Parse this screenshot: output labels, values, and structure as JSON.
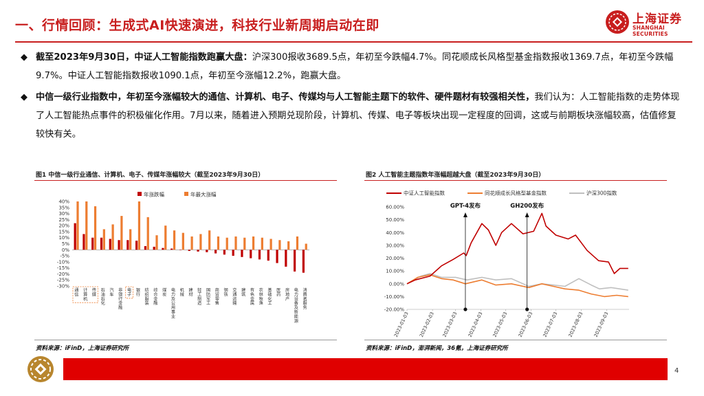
{
  "header": {
    "title": "一、行情回顾：生成式AI快速演进，科技行业新周期启动在即",
    "logo_cn": "上海证券",
    "logo_en": "SHANGHAI SECURITIES"
  },
  "bullets": [
    {
      "lead": "截至2023年9月30日，中证人工智能指数跑赢大盘：",
      "text": "沪深300报收3689.5点，年初至今跌幅4.7%。同花顺成长风格型基金指数报收1369.7点，年初至今跌幅9.7%。中证人工智能指数报收1090.1点，年初至今涨幅12.2%，跑赢大盘。"
    },
    {
      "lead": "中信一级行业指数中，年初至今涨幅较大的通信、计算机、电子、传媒均与人工智能主题下的软件、硬件题材有较强相关性，",
      "text": "我们认为：人工智能指数的走势体现了人工智能热点事件的积极催化作用。7月以来，随着进入预期兑现阶段，计算机、传媒、电子等板块出现一定程度的回调，这或与前期板块涨幅较高，估值修复较快有关。"
    }
  ],
  "figure1": {
    "title": "图1  中信一级行业通信、计算机、电子、传媒年涨幅较大（截至2023年9月30日）",
    "source": "资料来源：iFinD，上海证券研究所"
  },
  "figure2": {
    "title": "图2  人工智能主题指数年涨幅超越大盘（截至2023年9月30日）",
    "source": "资料来源：iFinD，澎湃新闻，36氪，上海证券研究所"
  },
  "footer": {
    "page": "4"
  },
  "colors": {
    "brand_red": "#c81e1e",
    "bar_dark": "#c00000",
    "bar_orange": "#ed7d31",
    "line_gray": "#bfbfbf"
  },
  "chart_data": [
    {
      "type": "bar",
      "legend_position": "top",
      "yticks": [
        "40%",
        "35%",
        "30%",
        "25%",
        "20%",
        "15%",
        "10%",
        "5%",
        "0%",
        "-5%",
        "-10%",
        "-15%",
        "-20%",
        "-25%",
        "-30%"
      ],
      "ylim": [
        -30,
        40
      ],
      "categories": [
        "通信",
        "计算机",
        "传媒",
        "石油石化",
        "汽车",
        "非银行金融",
        "电子",
        "银行",
        "纺织服装",
        "综合金融",
        "煤炭",
        "电力及公用事业",
        "机械",
        "建材",
        "轻工制造",
        "国防军工",
        "商贸零售",
        "钢铁",
        "交通运输",
        "建筑",
        "有色金属",
        "农林牧渔",
        "基础化工",
        "医药",
        "房地产",
        "电力设备及新能源",
        "消费者服务"
      ],
      "highlighted_categories": [
        "通信",
        "计算机",
        "传媒",
        "电子"
      ],
      "series": [
        {
          "name": "年涨跌幅",
          "color": "#c00000",
          "values": [
            22,
            13,
            10,
            10,
            9,
            8,
            8,
            7.5,
            3,
            2.5,
            1.5,
            1,
            0,
            -1,
            -1.5,
            -2,
            -3,
            -4,
            -5,
            -6,
            -7,
            -8,
            -9,
            -11,
            -14,
            -18,
            -19
          ]
        },
        {
          "name": "年最大涨幅",
          "color": "#ed7d31",
          "values": [
            40,
            40,
            36,
            17,
            21,
            28,
            17,
            40,
            27,
            12,
            20,
            16,
            14,
            11,
            13,
            16,
            11,
            10,
            11,
            10,
            11,
            10,
            9,
            8,
            7,
            11,
            5
          ]
        }
      ]
    },
    {
      "type": "line",
      "legend_position": "top",
      "ylim": [
        -20,
        60
      ],
      "yticks": [
        "60.00%",
        "50.00%",
        "40.00%",
        "30.00%",
        "20.00%",
        "10.00%",
        "0.00%",
        "-10.00%",
        "-20.00%"
      ],
      "xticks": [
        "2023-01-03",
        "2023-02-03",
        "2023-03-03",
        "2023-04-03",
        "2023-05-03",
        "2023-06-03",
        "2023-07-03",
        "2023-08-03",
        "2023-09-03"
      ],
      "x_range": [
        "2023-01-03",
        "2023-09-30"
      ],
      "annotations": [
        {
          "label": "GPT-4发布",
          "date": "2023-03-15"
        },
        {
          "label": "GH200发布",
          "date": "2023-05-29"
        }
      ],
      "series": [
        {
          "name": "中证人工智能指数",
          "color": "#c00000",
          "points": [
            [
              "2023-01-03",
              0
            ],
            [
              "2023-01-13",
              3
            ],
            [
              "2023-01-31",
              6
            ],
            [
              "2023-02-14",
              14
            ],
            [
              "2023-02-28",
              19
            ],
            [
              "2023-03-13",
              24
            ],
            [
              "2023-03-16",
              22
            ],
            [
              "2023-03-22",
              32
            ],
            [
              "2023-04-04",
              47
            ],
            [
              "2023-04-12",
              42
            ],
            [
              "2023-04-21",
              30
            ],
            [
              "2023-04-28",
              40
            ],
            [
              "2023-05-10",
              47
            ],
            [
              "2023-05-24",
              39
            ],
            [
              "2023-06-06",
              41
            ],
            [
              "2023-06-16",
              55
            ],
            [
              "2023-06-21",
              45
            ],
            [
              "2023-07-03",
              38
            ],
            [
              "2023-07-18",
              35
            ],
            [
              "2023-07-27",
              38
            ],
            [
              "2023-08-10",
              26
            ],
            [
              "2023-08-24",
              18
            ],
            [
              "2023-09-05",
              17
            ],
            [
              "2023-09-12",
              8
            ],
            [
              "2023-09-19",
              12
            ],
            [
              "2023-09-29",
              12
            ]
          ]
        },
        {
          "name": "同花顺成长风格型基金指数",
          "color": "#ed7d31",
          "points": [
            [
              "2023-01-03",
              0
            ],
            [
              "2023-01-16",
              5
            ],
            [
              "2023-01-31",
              7
            ],
            [
              "2023-02-14",
              4
            ],
            [
              "2023-02-28",
              3
            ],
            [
              "2023-03-15",
              0
            ],
            [
              "2023-04-04",
              3
            ],
            [
              "2023-04-21",
              -1
            ],
            [
              "2023-05-10",
              0
            ],
            [
              "2023-05-31",
              -3
            ],
            [
              "2023-06-16",
              0
            ],
            [
              "2023-06-30",
              -2
            ],
            [
              "2023-07-14",
              -4
            ],
            [
              "2023-07-31",
              -5
            ],
            [
              "2023-08-15",
              -8
            ],
            [
              "2023-08-31",
              -10
            ],
            [
              "2023-09-15",
              -9
            ],
            [
              "2023-09-29",
              -10
            ]
          ]
        },
        {
          "name": "沪深300指数",
          "color": "#bfbfbf",
          "points": [
            [
              "2023-01-03",
              0
            ],
            [
              "2023-01-20",
              6
            ],
            [
              "2023-01-31",
              8
            ],
            [
              "2023-02-14",
              5
            ],
            [
              "2023-03-03",
              5
            ],
            [
              "2023-03-17",
              3
            ],
            [
              "2023-04-04",
              5
            ],
            [
              "2023-04-21",
              3
            ],
            [
              "2023-05-10",
              4
            ],
            [
              "2023-05-31",
              -2
            ],
            [
              "2023-06-16",
              0
            ],
            [
              "2023-06-30",
              -1
            ],
            [
              "2023-07-14",
              -2
            ],
            [
              "2023-07-31",
              4
            ],
            [
              "2023-08-15",
              -1
            ],
            [
              "2023-08-25",
              -4
            ],
            [
              "2023-09-08",
              -3
            ],
            [
              "2023-09-29",
              -5
            ]
          ]
        }
      ]
    }
  ]
}
